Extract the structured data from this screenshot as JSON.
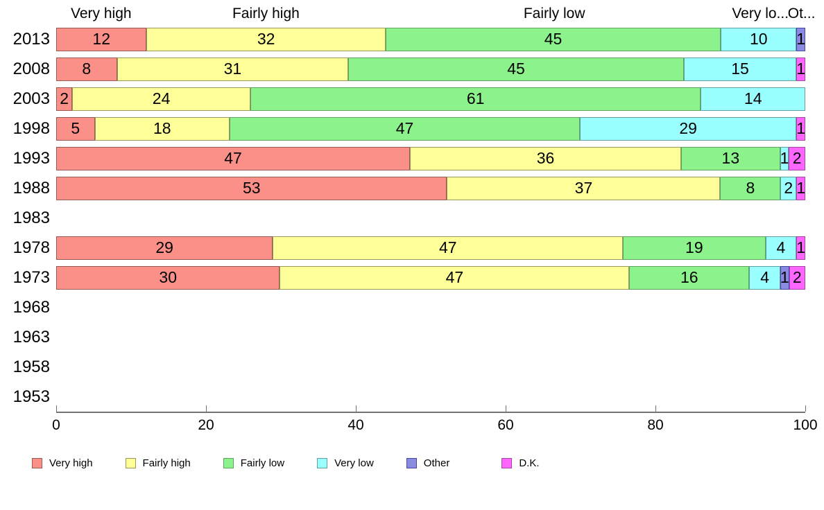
{
  "chart_data": {
    "type": "bar",
    "orientation": "horizontal",
    "stacked": true,
    "title": "",
    "xlabel": "",
    "ylabel": "",
    "x_axis": {
      "ticks": [
        "0",
        "20",
        "40",
        "60",
        "80",
        "100"
      ],
      "range": [
        0,
        100
      ]
    },
    "legend_position": "bottom",
    "series": [
      {
        "name": "Very high",
        "color": "#FA9088",
        "border": "#9A5A54"
      },
      {
        "name": "Fairly high",
        "color": "#FFFF99",
        "border": "#99995C"
      },
      {
        "name": "Fairly low",
        "color": "#8CF28C",
        "border": "#5FA55F"
      },
      {
        "name": "Very low",
        "color": "#99FFFF",
        "border": "#5FA0A0"
      },
      {
        "name": "Other",
        "color": "#8A8AE0",
        "border": "#4646A8"
      },
      {
        "name": "D.K.",
        "color": "#FF66FF",
        "border": "#A545A5"
      }
    ],
    "rows": [
      {
        "year": "2013",
        "values": [
          12,
          32,
          45,
          10,
          1,
          0
        ]
      },
      {
        "year": "2008",
        "values": [
          8,
          31,
          45,
          15,
          0,
          1
        ]
      },
      {
        "year": "2003",
        "values": [
          2,
          24,
          61,
          14,
          0,
          0
        ]
      },
      {
        "year": "1998",
        "values": [
          5,
          18,
          47,
          29,
          0,
          1
        ]
      },
      {
        "year": "1993",
        "values": [
          47,
          36,
          13,
          1,
          0,
          2
        ]
      },
      {
        "year": "1988",
        "values": [
          53,
          37,
          8,
          2,
          0,
          1
        ]
      },
      {
        "year": "1983",
        "values": []
      },
      {
        "year": "1978",
        "values": [
          29,
          47,
          19,
          4,
          0,
          1
        ]
      },
      {
        "year": "1973",
        "values": [
          30,
          47,
          16,
          4,
          1,
          2
        ]
      },
      {
        "year": "1968",
        "values": []
      },
      {
        "year": "1963",
        "values": []
      },
      {
        "year": "1958",
        "values": []
      },
      {
        "year": "1953",
        "values": []
      }
    ],
    "column_captions": [
      {
        "text": "Very high",
        "center_pct": 6
      },
      {
        "text": "Fairly high",
        "center_pct": 28
      },
      {
        "text": "Fairly low",
        "center_pct": 66.5
      },
      {
        "text": "Very lo...",
        "center_pct": 94
      },
      {
        "text": "Ot...",
        "center_pct": 99.5
      }
    ]
  }
}
